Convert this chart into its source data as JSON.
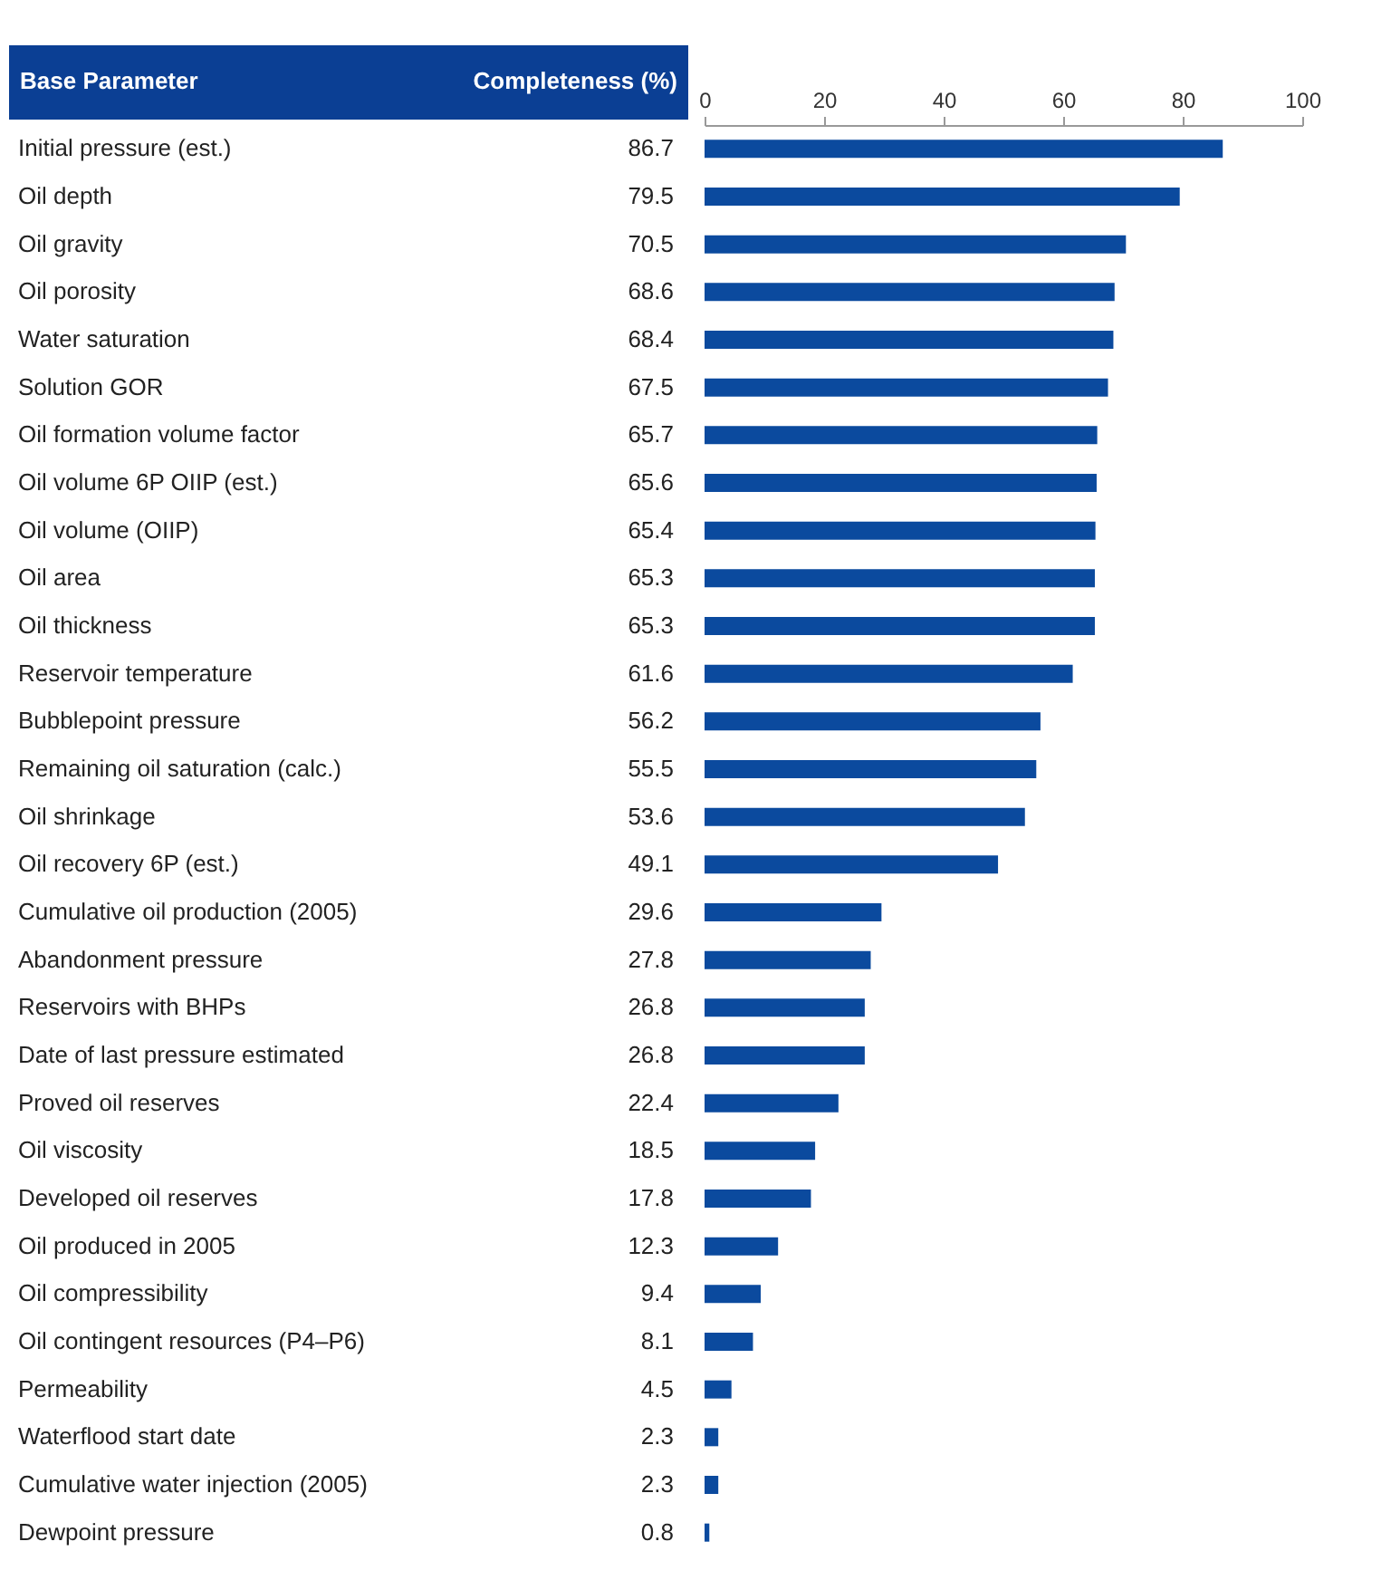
{
  "chart_data": {
    "type": "bar",
    "orientation": "horizontal",
    "ylabel": "Base Parameter",
    "xlabel": "Completeness (%)",
    "categories": [
      "Initial pressure (est.)",
      "Oil depth",
      "Oil gravity",
      "Oil porosity",
      "Water saturation",
      "Solution GOR",
      "Oil formation volume factor",
      "Oil volume 6P OIIP (est.)",
      "Oil volume (OIIP)",
      "Oil area",
      "Oil thickness",
      "Reservoir temperature",
      "Bubblepoint pressure",
      "Remaining oil saturation (calc.)",
      "Oil shrinkage",
      "Oil recovery 6P (est.)",
      "Cumulative oil production (2005)",
      "Abandonment pressure",
      "Reservoirs with BHPs",
      "Date of last pressure estimated",
      "Proved oil reserves",
      "Oil viscosity",
      "Developed oil reserves",
      "Oil produced in 2005",
      "Oil compressibility",
      "Oil contingent resources (P4–P6)",
      "Permeability",
      "Waterflood start date",
      "Cumulative water injection (2005)",
      "Dewpoint pressure"
    ],
    "values": [
      86.7,
      79.5,
      70.5,
      68.6,
      68.4,
      67.5,
      65.7,
      65.6,
      65.4,
      65.3,
      65.3,
      61.6,
      56.2,
      55.5,
      53.6,
      49.1,
      29.6,
      27.8,
      26.8,
      26.8,
      22.4,
      18.5,
      17.8,
      12.3,
      9.4,
      8.1,
      4.5,
      2.3,
      2.3,
      0.8
    ],
    "color": "#0b4a9e",
    "data_labels": true,
    "x2lim": [
      0,
      100
    ],
    "x2ticks": [
      0,
      20,
      40,
      60,
      80,
      100
    ],
    "grid": false
  }
}
